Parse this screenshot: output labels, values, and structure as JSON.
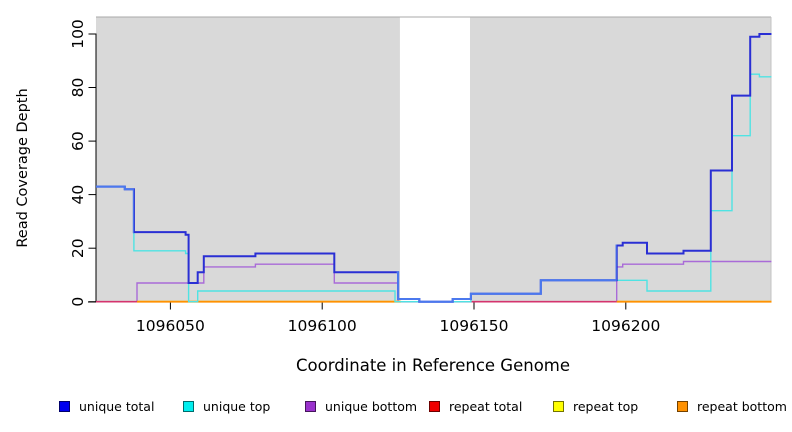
{
  "chart_data": {
    "type": "step-line",
    "title": "",
    "xlabel": "Coordinate in Reference Genome",
    "ylabel": "Read Coverage Depth",
    "x_range": [
      1096025.5,
      1096248
    ],
    "y_range": [
      0,
      100
    ],
    "x_tick_values": [
      1096050,
      1096100,
      1096150,
      1096200
    ],
    "x_tick_labels": [
      "1096050",
      "1096100",
      "1096150",
      "1096200"
    ],
    "y_tick_values": [
      0,
      20,
      40,
      60,
      80,
      100
    ],
    "y_tick_labels": [
      "0",
      "20",
      "40",
      "60",
      "80",
      "100"
    ],
    "plot_bg": "#d9d9d9",
    "grid": false,
    "masked_region": {
      "x_start": 1096125.6,
      "x_end": 1096148.7,
      "color": "#ffffff"
    },
    "series": [
      {
        "name": "unique bottom",
        "color": "#a96bd8",
        "width": 1.4,
        "runs": [
          [
            [
              1096025.5,
              0
            ],
            [
              1096039,
              7
            ],
            [
              1096061,
              13
            ],
            [
              1096078,
              14
            ],
            [
              1096104,
              7
            ],
            [
              1096125,
              0
            ],
            [
              1096197,
              13
            ],
            [
              1096199,
              14
            ],
            [
              1096219,
              15
            ],
            [
              1096248,
              15
            ]
          ]
        ]
      },
      {
        "name": "repeat top",
        "color": "#ffff00",
        "width": 1.6,
        "runs": [
          [
            [
              1096039,
              0
            ],
            [
              1096126,
              0
            ]
          ],
          [
            [
              1096197,
              0
            ],
            [
              1096248,
              0
            ]
          ]
        ]
      },
      {
        "name": "repeat bottom",
        "color": "#ff9100",
        "width": 1.8,
        "runs": [
          [
            [
              1096039,
              0
            ],
            [
              1096126,
              0
            ]
          ],
          [
            [
              1096197,
              0
            ],
            [
              1096248,
              0
            ]
          ]
        ]
      },
      {
        "name": "repeat total",
        "color": "#d4346e",
        "width": 1.6,
        "runs": [
          [
            [
              1096025.5,
              0
            ],
            [
              1096039,
              0
            ]
          ],
          [
            [
              1096149,
              0
            ],
            [
              1096197,
              0
            ]
          ]
        ]
      },
      {
        "name": "unique top",
        "color": "#4fe3e3",
        "width": 1.4,
        "runs": [
          [
            [
              1096025.5,
              43
            ],
            [
              1096035,
              42
            ],
            [
              1096038,
              19
            ],
            [
              1096055,
              18
            ],
            [
              1096056,
              0
            ],
            [
              1096059,
              4
            ],
            [
              1096124,
              0
            ],
            [
              1096149,
              3
            ],
            [
              1096172,
              8
            ],
            [
              1096207,
              4
            ],
            [
              1096228,
              34
            ],
            [
              1096235,
              62
            ],
            [
              1096241,
              85
            ],
            [
              1096244,
              84
            ],
            [
              1096248,
              84
            ]
          ]
        ]
      },
      {
        "name": "unique total",
        "color": "#2a2fd4",
        "width": 2,
        "overlay_color": "#4b79ee",
        "overlay_ranges": [
          [
            1096025.5,
            1096038
          ],
          [
            1096124.5,
            1096197
          ]
        ],
        "runs": [
          [
            [
              1096025.5,
              43
            ],
            [
              1096035,
              42
            ],
            [
              1096038,
              26
            ],
            [
              1096055,
              25
            ],
            [
              1096056,
              7
            ],
            [
              1096059,
              11
            ],
            [
              1096061,
              17
            ],
            [
              1096078,
              18
            ],
            [
              1096104,
              11
            ],
            [
              1096125,
              1
            ],
            [
              1096132,
              0
            ],
            [
              1096143,
              1
            ],
            [
              1096149,
              3
            ],
            [
              1096172,
              8
            ],
            [
              1096197,
              21
            ],
            [
              1096199,
              22
            ],
            [
              1096207,
              18
            ],
            [
              1096219,
              19
            ],
            [
              1096228,
              49
            ],
            [
              1096235,
              77
            ],
            [
              1096241,
              99
            ],
            [
              1096244,
              100
            ],
            [
              1096248,
              100
            ]
          ]
        ]
      }
    ]
  },
  "legend": {
    "items": [
      {
        "label": "unique total",
        "color": "#0000ee"
      },
      {
        "label": "unique top",
        "color": "#00eeee"
      },
      {
        "label": "unique bottom",
        "color": "#9a32cd"
      },
      {
        "label": "repeat total",
        "color": "#ee0000"
      },
      {
        "label": "repeat top",
        "color": "#ffff00"
      },
      {
        "label": "repeat bottom",
        "color": "#ff9100"
      }
    ]
  }
}
